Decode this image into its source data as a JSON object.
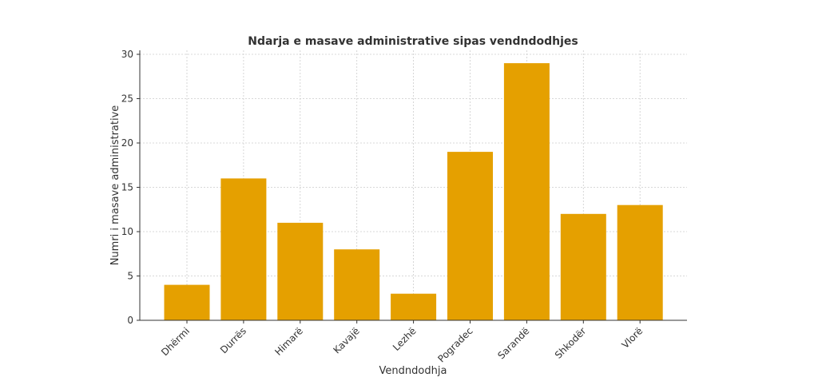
{
  "chart_data": {
    "type": "bar",
    "title": "Ndarja e masave administrative sipas vendndodhjes",
    "xlabel": "Vendndodhja",
    "ylabel": "Numri i masave administrative",
    "categories": [
      "Dhërmi",
      "Durrës",
      "Himarë",
      "Kavajë",
      "Lezhë",
      "Pogradec",
      "Sarandë",
      "Shkodër",
      "Vlorë"
    ],
    "values": [
      4,
      16,
      11,
      8,
      3,
      19,
      29,
      12,
      13
    ],
    "ylim": [
      0,
      30
    ],
    "yticks": [
      0,
      5,
      10,
      15,
      20,
      25,
      30
    ],
    "grid": true,
    "bar_color": "#E5A000"
  }
}
